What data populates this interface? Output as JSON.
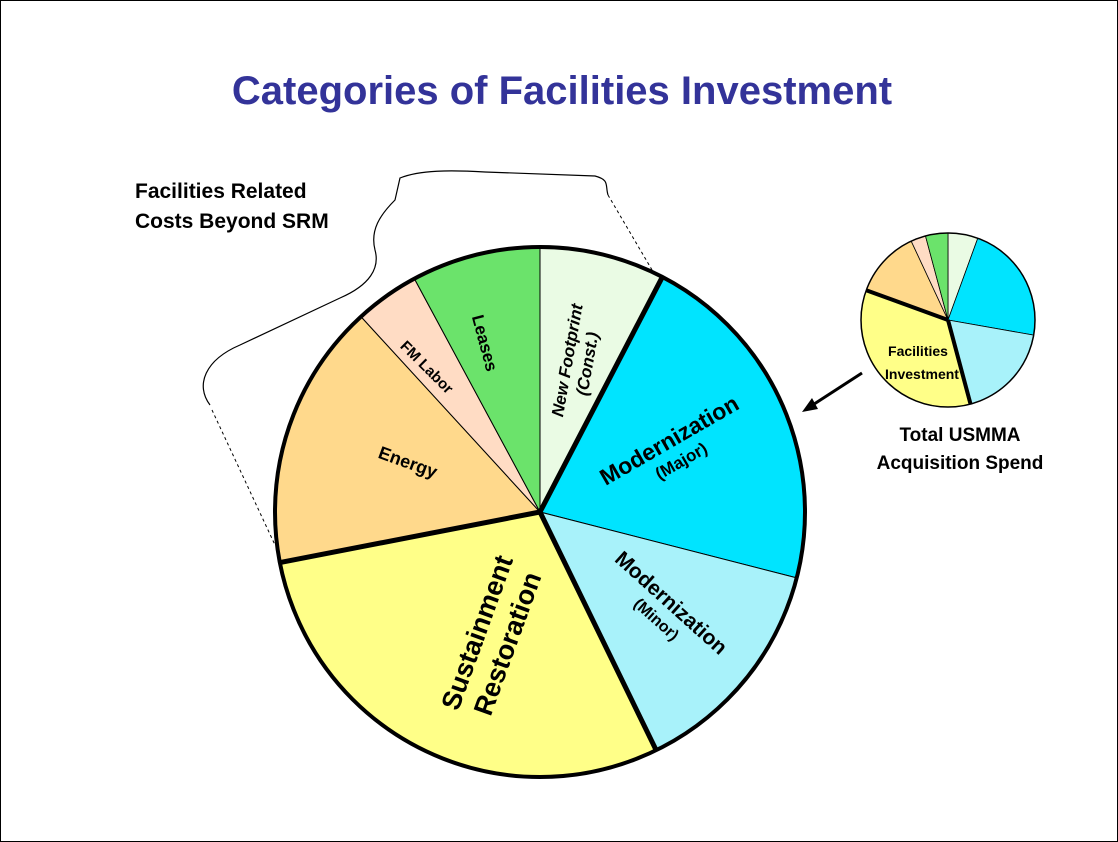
{
  "title": "Categories of Facilities Investment",
  "bracket_label": [
    "Facilities Related",
    "Costs Beyond SRM"
  ],
  "segments": [
    {
      "lines": [
        "New Footprint",
        "(Const.)"
      ]
    },
    {
      "lines": [
        "Modernization",
        "(Major)"
      ]
    },
    {
      "lines": [
        "Modernization",
        "(Minor)"
      ]
    },
    {
      "lines": [
        "Sustainment",
        "Restoration"
      ]
    },
    {
      "lines": [
        "Energy"
      ]
    },
    {
      "lines": [
        "FM Labor"
      ]
    },
    {
      "lines": [
        "Leases"
      ]
    }
  ],
  "inset": {
    "slice_label": [
      "Facilities",
      "Investment"
    ],
    "caption": [
      "Total USMMA",
      "Acquisition Spend"
    ]
  }
}
